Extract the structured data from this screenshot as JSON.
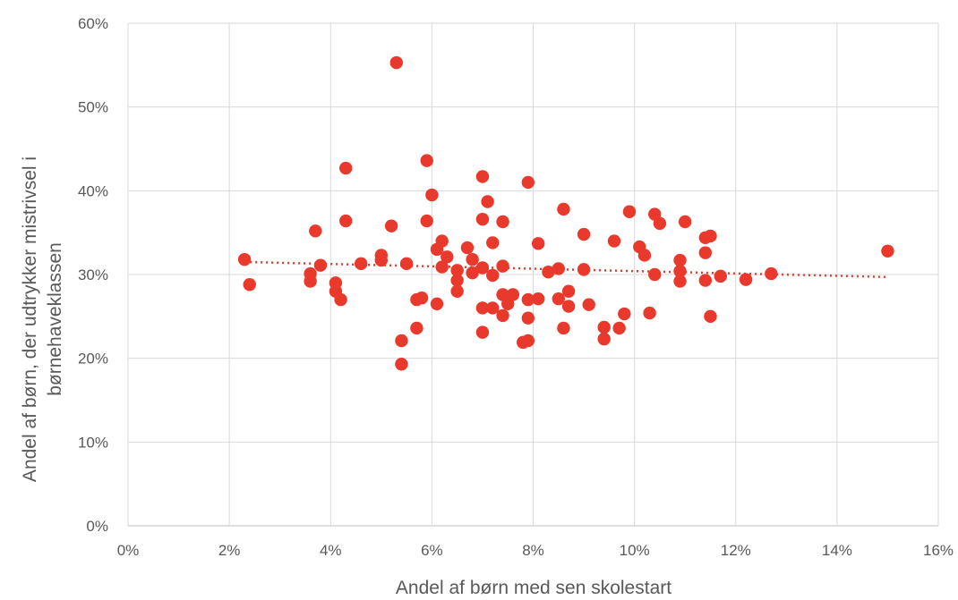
{
  "chart_data": {
    "type": "scatter",
    "xlabel": "Andel af børn med sen skolestart",
    "ylabel_lines": [
      "Andel af børn, der udtrykker mistrivsel i",
      "børnehaveklassen"
    ],
    "xlim": [
      0,
      16
    ],
    "ylim": [
      0,
      60
    ],
    "x_ticks": [
      0,
      2,
      4,
      6,
      8,
      10,
      12,
      14,
      16
    ],
    "y_ticks": [
      0,
      10,
      20,
      30,
      40,
      50,
      60
    ],
    "x_tick_labels": [
      "0%",
      "2%",
      "4%",
      "6%",
      "8%",
      "10%",
      "12%",
      "14%",
      "16%"
    ],
    "y_tick_labels": [
      "0%",
      "10%",
      "20%",
      "30%",
      "40%",
      "50%",
      "60%"
    ],
    "grid": "both",
    "marker_color": "#e8392c",
    "trendline": {
      "type": "linear",
      "x": [
        2.3,
        15.0
      ],
      "y": [
        31.5,
        29.7
      ],
      "style": "dotted"
    },
    "points": [
      [
        2.3,
        31.8
      ],
      [
        2.4,
        28.8
      ],
      [
        3.6,
        30.1
      ],
      [
        3.6,
        29.2
      ],
      [
        3.7,
        35.2
      ],
      [
        3.8,
        31.1
      ],
      [
        4.1,
        28.0
      ],
      [
        4.1,
        29.0
      ],
      [
        4.2,
        27.0
      ],
      [
        4.3,
        36.4
      ],
      [
        4.3,
        42.7
      ],
      [
        4.6,
        31.3
      ],
      [
        5.0,
        32.3
      ],
      [
        5.0,
        31.7
      ],
      [
        5.2,
        35.8
      ],
      [
        5.3,
        55.3
      ],
      [
        5.4,
        22.1
      ],
      [
        5.4,
        19.3
      ],
      [
        5.5,
        31.3
      ],
      [
        5.7,
        23.6
      ],
      [
        5.7,
        27.0
      ],
      [
        5.8,
        27.2
      ],
      [
        5.9,
        43.6
      ],
      [
        5.9,
        36.4
      ],
      [
        6.0,
        39.5
      ],
      [
        6.1,
        33.0
      ],
      [
        6.1,
        26.5
      ],
      [
        6.2,
        34.0
      ],
      [
        6.2,
        30.9
      ],
      [
        6.3,
        32.1
      ],
      [
        6.5,
        29.3
      ],
      [
        6.5,
        30.5
      ],
      [
        6.5,
        28.0
      ],
      [
        6.7,
        33.2
      ],
      [
        6.8,
        31.8
      ],
      [
        6.8,
        30.2
      ],
      [
        7.0,
        41.7
      ],
      [
        7.0,
        36.6
      ],
      [
        7.0,
        30.8
      ],
      [
        7.0,
        26.0
      ],
      [
        7.0,
        23.1
      ],
      [
        7.1,
        38.7
      ],
      [
        7.2,
        33.8
      ],
      [
        7.2,
        29.9
      ],
      [
        7.2,
        26.0
      ],
      [
        7.4,
        36.3
      ],
      [
        7.4,
        31.0
      ],
      [
        7.4,
        27.6
      ],
      [
        7.4,
        25.1
      ],
      [
        7.5,
        26.5
      ],
      [
        7.6,
        27.6
      ],
      [
        7.8,
        21.9
      ],
      [
        7.9,
        41.0
      ],
      [
        7.9,
        27.0
      ],
      [
        7.9,
        24.8
      ],
      [
        7.9,
        22.1
      ],
      [
        8.1,
        27.1
      ],
      [
        8.1,
        33.7
      ],
      [
        8.3,
        30.3
      ],
      [
        8.5,
        30.7
      ],
      [
        8.5,
        27.1
      ],
      [
        8.6,
        23.6
      ],
      [
        8.6,
        37.8
      ],
      [
        8.7,
        28.0
      ],
      [
        8.7,
        26.2
      ],
      [
        9.0,
        34.8
      ],
      [
        9.0,
        30.6
      ],
      [
        9.1,
        26.4
      ],
      [
        9.4,
        23.7
      ],
      [
        9.4,
        22.3
      ],
      [
        9.6,
        34.0
      ],
      [
        9.7,
        23.6
      ],
      [
        9.8,
        25.3
      ],
      [
        9.9,
        37.5
      ],
      [
        10.1,
        33.3
      ],
      [
        10.2,
        32.3
      ],
      [
        10.3,
        25.4
      ],
      [
        10.4,
        37.2
      ],
      [
        10.4,
        30.0
      ],
      [
        10.5,
        36.1
      ],
      [
        10.9,
        31.7
      ],
      [
        10.9,
        30.4
      ],
      [
        10.9,
        29.2
      ],
      [
        11.0,
        36.3
      ],
      [
        11.4,
        34.4
      ],
      [
        11.4,
        32.6
      ],
      [
        11.4,
        29.3
      ],
      [
        11.5,
        34.6
      ],
      [
        11.5,
        25.0
      ],
      [
        11.7,
        29.8
      ],
      [
        12.2,
        29.4
      ],
      [
        12.7,
        30.1
      ],
      [
        15.0,
        32.8
      ]
    ]
  }
}
